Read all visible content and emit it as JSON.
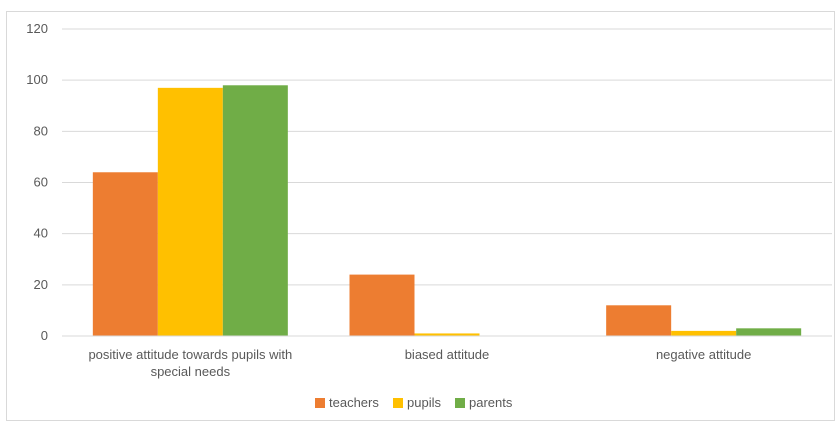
{
  "chart_data": {
    "type": "bar",
    "title": "",
    "xlabel": "",
    "ylabel": "",
    "ylim": [
      0,
      120
    ],
    "yticks": [
      0,
      20,
      40,
      60,
      80,
      100,
      120
    ],
    "grid": true,
    "legend_position": "bottom",
    "categories": [
      [
        "positive attitude towards pupils with",
        "special needs"
      ],
      [
        "biased attitude"
      ],
      [
        "negative attitude"
      ]
    ],
    "series": [
      {
        "name": "teachers",
        "color": "#ed7d31",
        "values": [
          64,
          24,
          12
        ]
      },
      {
        "name": "pupils",
        "color": "#ffc000",
        "values": [
          97,
          1,
          2
        ]
      },
      {
        "name": "parents",
        "color": "#70ad47",
        "values": [
          98,
          0,
          3
        ]
      }
    ]
  }
}
